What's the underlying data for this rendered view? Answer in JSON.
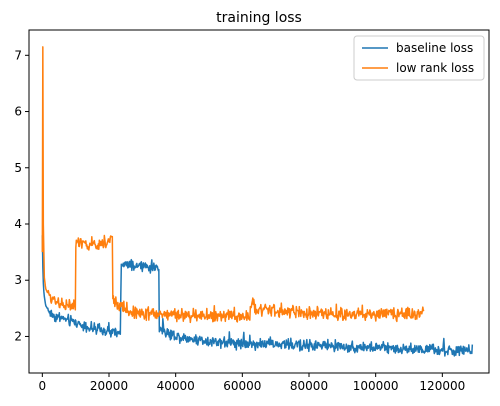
{
  "chart_data": {
    "type": "line",
    "title": "training loss",
    "xlabel": "",
    "ylabel": "",
    "xlim": [
      -4000,
      134000
    ],
    "ylim": [
      1.35,
      7.45
    ],
    "x_ticks": [
      0,
      20000,
      40000,
      60000,
      80000,
      100000,
      120000
    ],
    "x_tick_labels": [
      "0",
      "20000",
      "40000",
      "60000",
      "80000",
      "100000",
      "120000"
    ],
    "y_ticks": [
      2,
      3,
      4,
      5,
      6,
      7
    ],
    "y_tick_labels": [
      "2",
      "3",
      "4",
      "5",
      "6",
      "7"
    ],
    "grid": false,
    "legend_position": "top-right",
    "series": [
      {
        "name": "baseline loss",
        "color": "#1f77b4",
        "noise": 0.06,
        "x": [
          0,
          200,
          500,
          1000,
          2000,
          3000,
          4000,
          6000,
          8000,
          10000,
          12000,
          16000,
          20000,
          23500,
          23600,
          26000,
          30000,
          35000,
          35100,
          38000,
          42000,
          50000,
          60000,
          70000,
          80000,
          90000,
          100000,
          110000,
          120000,
          129000
        ],
        "y": [
          3.8,
          3.05,
          2.75,
          2.55,
          2.45,
          2.38,
          2.35,
          2.32,
          2.28,
          2.25,
          2.2,
          2.12,
          2.08,
          2.05,
          3.3,
          3.25,
          3.25,
          3.22,
          2.15,
          2.05,
          1.98,
          1.92,
          1.88,
          1.86,
          1.84,
          1.82,
          1.8,
          1.78,
          1.75,
          1.73
        ]
      },
      {
        "name": "low rank loss",
        "color": "#ff7f0e",
        "noise": 0.07,
        "x": [
          0,
          150,
          300,
          600,
          1000,
          2000,
          4000,
          6000,
          8000,
          9900,
          10000,
          14000,
          18000,
          20500,
          21000,
          21100,
          23000,
          26000,
          30000,
          40000,
          50000,
          60000,
          62000,
          63000,
          64000,
          70000,
          80000,
          90000,
          100000,
          110000,
          114500
        ],
        "y": [
          3.5,
          7.15,
          4.0,
          3.05,
          2.85,
          2.72,
          2.65,
          2.58,
          2.55,
          2.52,
          3.65,
          3.62,
          3.65,
          3.72,
          3.8,
          2.65,
          2.55,
          2.45,
          2.42,
          2.38,
          2.36,
          2.35,
          2.34,
          2.65,
          2.5,
          2.45,
          2.42,
          2.4,
          2.4,
          2.4,
          2.4
        ]
      }
    ]
  }
}
